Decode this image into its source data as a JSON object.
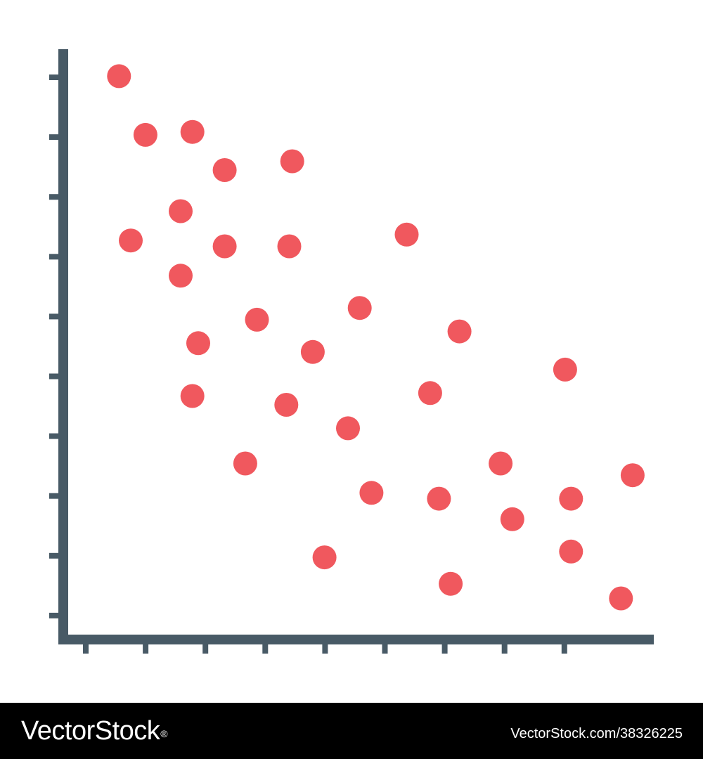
{
  "footer": {
    "brand": "VectorStock",
    "registered_mark": "®",
    "image_id": "VectorStock.com/38326225"
  },
  "colors": {
    "axis": "#485a66",
    "points": "#f0585e",
    "background": "#ffffff",
    "footer_bg": "#000000",
    "footer_text": "#ffffff"
  },
  "chart_data": {
    "type": "scatter",
    "x_ticks": 9,
    "y_ticks": 10,
    "xlim": [
      0,
      10
    ],
    "ylim": [
      0,
      10
    ],
    "grid": false,
    "legend": "none",
    "points": [
      {
        "x": 0.95,
        "y": 9.6
      },
      {
        "x": 1.4,
        "y": 8.6
      },
      {
        "x": 2.2,
        "y": 8.65
      },
      {
        "x": 2.75,
        "y": 8.0
      },
      {
        "x": 3.9,
        "y": 8.15
      },
      {
        "x": 2.0,
        "y": 7.3
      },
      {
        "x": 1.15,
        "y": 6.8
      },
      {
        "x": 2.75,
        "y": 6.7
      },
      {
        "x": 3.85,
        "y": 6.7
      },
      {
        "x": 5.85,
        "y": 6.9
      },
      {
        "x": 2.0,
        "y": 6.2
      },
      {
        "x": 3.3,
        "y": 5.45
      },
      {
        "x": 5.05,
        "y": 5.65
      },
      {
        "x": 2.3,
        "y": 5.05
      },
      {
        "x": 4.25,
        "y": 4.9
      },
      {
        "x": 6.75,
        "y": 5.25
      },
      {
        "x": 2.2,
        "y": 4.15
      },
      {
        "x": 3.8,
        "y": 4.0
      },
      {
        "x": 6.25,
        "y": 4.2
      },
      {
        "x": 8.55,
        "y": 4.6
      },
      {
        "x": 4.85,
        "y": 3.6
      },
      {
        "x": 3.1,
        "y": 3.0
      },
      {
        "x": 7.45,
        "y": 3.0
      },
      {
        "x": 9.7,
        "y": 2.8
      },
      {
        "x": 5.25,
        "y": 2.5
      },
      {
        "x": 6.4,
        "y": 2.4
      },
      {
        "x": 7.65,
        "y": 2.05
      },
      {
        "x": 8.65,
        "y": 2.4
      },
      {
        "x": 4.45,
        "y": 1.4
      },
      {
        "x": 8.65,
        "y": 1.5
      },
      {
        "x": 6.6,
        "y": 0.95
      },
      {
        "x": 9.5,
        "y": 0.7
      }
    ]
  }
}
